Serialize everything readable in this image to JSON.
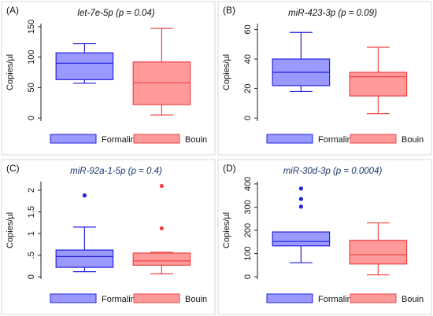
{
  "legend": {
    "formalin_label": "Formalin",
    "bouin_label": "Bouin"
  },
  "colors": {
    "formalin_fill": "#9999ff",
    "formalin_stroke": "#2222dd",
    "bouin_fill": "#ff9a9a",
    "bouin_stroke": "#ee4444",
    "title_color_ab": "#111111",
    "title_color_cd": "#1a3a6b",
    "panel_border": "#d9d9d9",
    "background": "#ffffff"
  },
  "chart_data": [
    {
      "type": "box",
      "panel_label": "(A)",
      "title": "let-7e-5p (p = 0.04)",
      "ylabel": "Copies/µl",
      "ylim": [
        -5,
        155
      ],
      "yticks": [
        0,
        50,
        100,
        150
      ],
      "ytick_labels": [
        "0",
        "50",
        "100",
        "150"
      ],
      "series": [
        {
          "name": "Formalin",
          "whisker_low": 57,
          "q1": 63,
          "median": 90,
          "q3": 107,
          "whisker_high": 122,
          "outliers": []
        },
        {
          "name": "Bouin",
          "whisker_low": 5,
          "q1": 22,
          "median": 58,
          "q3": 92,
          "whisker_high": 147,
          "outliers": []
        }
      ]
    },
    {
      "type": "box",
      "panel_label": "(B)",
      "title": "miR-423-3p  (p = 0.09)",
      "ylabel": "Copies/µl",
      "ylim": [
        -2,
        64
      ],
      "yticks": [
        0,
        20,
        40,
        60
      ],
      "ytick_labels": [
        "0",
        "20",
        "40",
        "60"
      ],
      "series": [
        {
          "name": "Formalin",
          "whisker_low": 18,
          "q1": 22,
          "median": 31,
          "q3": 40,
          "whisker_high": 58,
          "outliers": []
        },
        {
          "name": "Bouin",
          "whisker_low": 3,
          "q1": 15,
          "median": 28,
          "q3": 31,
          "whisker_high": 48,
          "outliers": []
        }
      ]
    },
    {
      "type": "box",
      "panel_label": "(C)",
      "title": "miR-92a-1-5p (p = 0.4)",
      "ylabel": "Copies/µl",
      "ylim": [
        -0.05,
        2.2
      ],
      "yticks": [
        0,
        0.5,
        1,
        1.5,
        2
      ],
      "ytick_labels": [
        "0",
        ".5",
        "1",
        "1.5",
        "2"
      ],
      "series": [
        {
          "name": "Formalin",
          "whisker_low": 0.12,
          "q1": 0.22,
          "median": 0.47,
          "q3": 0.62,
          "whisker_high": 1.15,
          "outliers": [
            1.88
          ]
        },
        {
          "name": "Bouin",
          "whisker_low": 0.07,
          "q1": 0.27,
          "median": 0.37,
          "q3": 0.55,
          "whisker_high": 0.57,
          "outliers": [
            1.12,
            2.1
          ]
        }
      ]
    },
    {
      "type": "box",
      "panel_label": "(D)",
      "title": "miR-30d-3p (p = 0.0004)",
      "ylabel": "Copies/µl",
      "ylim": [
        -10,
        410
      ],
      "yticks": [
        0,
        100,
        200,
        300,
        400
      ],
      "ytick_labels": [
        "0",
        "100",
        "200",
        "300",
        "400"
      ],
      "series": [
        {
          "name": "Formalin",
          "whisker_low": 60,
          "q1": 133,
          "median": 152,
          "q3": 193,
          "whisker_high": 193,
          "outliers": [
            302,
            335,
            380
          ]
        },
        {
          "name": "Bouin",
          "whisker_low": 8,
          "q1": 55,
          "median": 95,
          "q3": 157,
          "whisker_high": 232,
          "outliers": []
        }
      ]
    }
  ]
}
